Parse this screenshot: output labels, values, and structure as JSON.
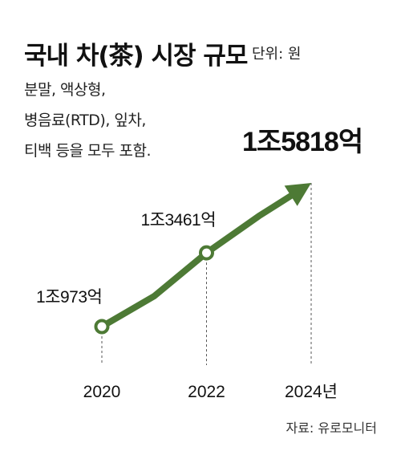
{
  "header": {
    "title": "국내 차(茶) 시장 규모",
    "unit": "단위: 원"
  },
  "note": {
    "line1": "분말, 액상형,",
    "line2": "병음료(RTD), 잎차,",
    "line3": "티백 등을 모두 포함."
  },
  "source": "자료: 유로모니터",
  "colors": {
    "line": "#4d7a35",
    "text": "#111111",
    "guide": "#555555"
  },
  "chart_data": {
    "type": "line",
    "x": [
      2020,
      2021,
      2022,
      2023,
      2024
    ],
    "values": [
      10973,
      12000,
      13461,
      14700,
      15818
    ],
    "xtick_labels": [
      "2020",
      "2022",
      "2024년"
    ],
    "xtick_values": [
      2020,
      2022,
      2024
    ],
    "data_labels": [
      {
        "x": 2020,
        "text": "1조973억"
      },
      {
        "x": 2022,
        "text": "1조3461억"
      },
      {
        "x": 2024,
        "text": "1조5818억"
      }
    ],
    "grid": false,
    "legend": "none",
    "end_marker": "arrow"
  }
}
